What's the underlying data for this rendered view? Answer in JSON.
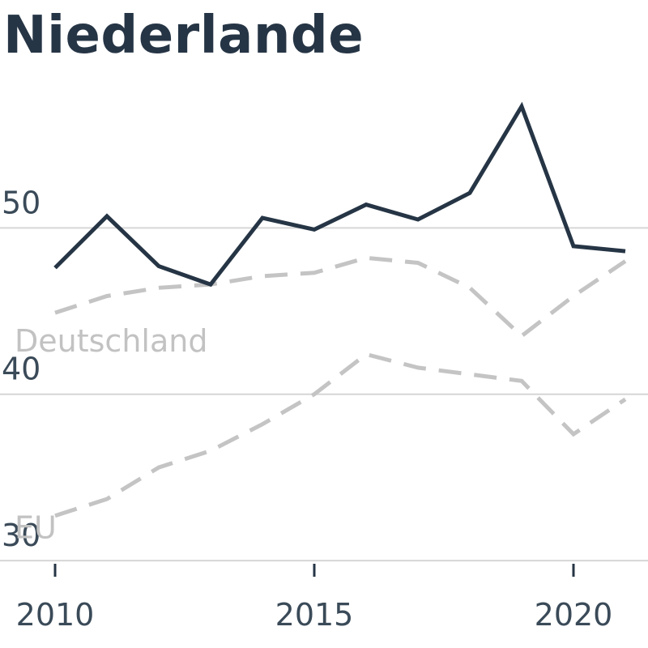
{
  "title": "Niederlande",
  "chart_data": {
    "type": "line",
    "title": "Niederlande",
    "xlabel": "",
    "ylabel": "",
    "xlim": [
      2009,
      2021.5
    ],
    "ylim": [
      26.5,
      58
    ],
    "yticks": [
      30,
      40,
      50
    ],
    "xticks": [
      2010,
      2015,
      2020
    ],
    "grid": true,
    "x": [
      2010,
      2011,
      2012,
      2013,
      2014,
      2015,
      2016,
      2017,
      2018,
      2019,
      2020,
      2021
    ],
    "series": [
      {
        "name": "",
        "style": "solid",
        "color": "#263545",
        "values": [
          47.6,
          50.7,
          47.7,
          46.6,
          50.6,
          49.9,
          51.4,
          50.5,
          52.1,
          57.3,
          48.9,
          48.6
        ]
      },
      {
        "name": "Deutschland",
        "style": "dashed",
        "color": "#c4c4c4",
        "values": [
          44.9,
          45.9,
          46.4,
          46.6,
          47.1,
          47.3,
          48.2,
          47.9,
          46.4,
          43.5,
          45.9,
          48.0
        ]
      },
      {
        "name": "EU",
        "style": "dashed",
        "color": "#c4c4c4",
        "values": [
          32.7,
          33.7,
          35.6,
          36.6,
          38.2,
          40.0,
          42.4,
          41.6,
          41.2,
          40.8,
          37.6,
          39.7
        ]
      }
    ]
  }
}
